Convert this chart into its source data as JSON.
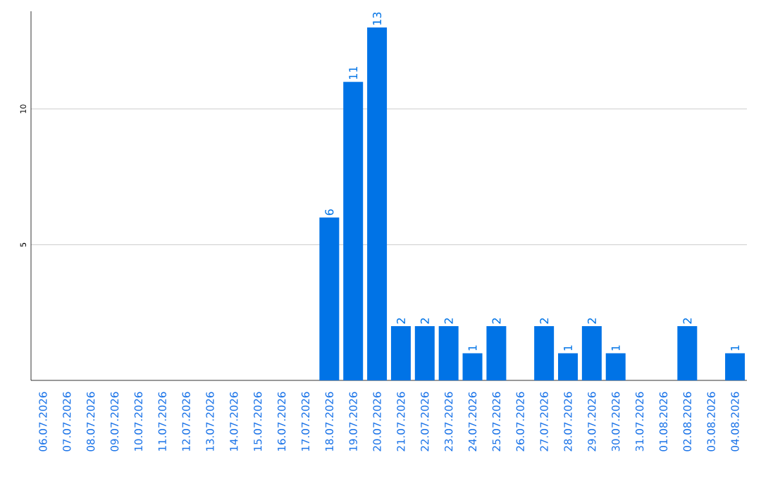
{
  "chart_data": {
    "type": "bar",
    "categories": [
      "06.07.2026",
      "07.07.2026",
      "08.07.2026",
      "09.07.2026",
      "10.07.2026",
      "11.07.2026",
      "12.07.2026",
      "13.07.2026",
      "14.07.2026",
      "15.07.2026",
      "16.07.2026",
      "17.07.2026",
      "18.07.2026",
      "19.07.2026",
      "20.07.2026",
      "21.07.2026",
      "22.07.2026",
      "23.07.2026",
      "24.07.2026",
      "25.07.2026",
      "26.07.2026",
      "27.07.2026",
      "28.07.2026",
      "29.07.2026",
      "30.07.2026",
      "31.07.2026",
      "01.08.2026",
      "02.08.2026",
      "03.08.2026",
      "04.08.2026"
    ],
    "values": [
      0,
      0,
      0,
      0,
      0,
      0,
      0,
      0,
      0,
      0,
      0,
      0,
      6,
      11,
      13,
      2,
      2,
      2,
      1,
      2,
      0,
      2,
      1,
      2,
      1,
      0,
      0,
      2,
      0,
      1
    ],
    "value_labels": [
      null,
      null,
      null,
      null,
      null,
      null,
      null,
      null,
      null,
      null,
      null,
      null,
      "6",
      "11",
      "13",
      "2",
      "2",
      "2",
      "1",
      "2",
      null,
      "2",
      "1",
      "2",
      "1",
      null,
      null,
      "2",
      null,
      "1"
    ],
    "color": "#0073e6",
    "ylim": [
      0,
      13.6
    ],
    "yticks": [
      5,
      10
    ],
    "grid": "y"
  }
}
